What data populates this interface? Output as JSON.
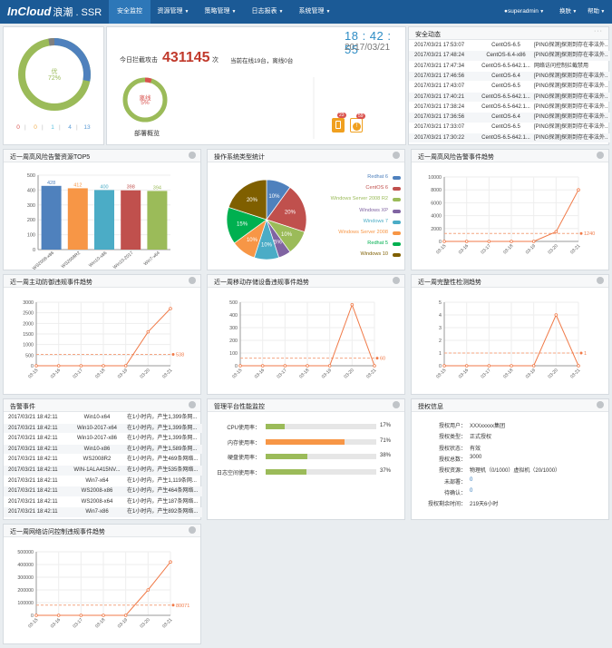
{
  "header": {
    "logo_main": "InCloud",
    "logo_sub": "浪潮 . SSR",
    "menus": [
      {
        "label": "安全监控",
        "active": true
      },
      {
        "label": "资源管理",
        "active": false
      },
      {
        "label": "策略管理",
        "active": false
      },
      {
        "label": "日志报表",
        "active": false
      },
      {
        "label": "系统管理",
        "active": false
      }
    ],
    "user": "superadmin",
    "skin": "换肤",
    "help": "帮助"
  },
  "overview": {
    "donut_label": "优",
    "donut_pct": "72%",
    "donut_value": 72,
    "counts": [
      "0",
      "0",
      "1",
      "4",
      "13"
    ],
    "count_colors": [
      "#d9534f",
      "#f0ad4e",
      "#5bc0de",
      "#5b9bd5",
      "#5b9bd5"
    ],
    "intercept_label": "今日拦截攻击",
    "intercept_value": "431145",
    "intercept_unit": "次",
    "online_text": "当前在线19台，离线0台",
    "offline_label": "离线",
    "offline_pct": "5%",
    "offline_value": 5,
    "deploy_label": "部署概览",
    "time": "18 : 42 : 55",
    "date": "2017/03/21",
    "alert_icon_badge1": "23",
    "alert_icon_badge2": "59"
  },
  "security": {
    "title": "安全动态",
    "more": "···",
    "rows": [
      [
        "2017/03/21 17:53:07",
        "CentOS-6.5",
        "[PING探测]探测到存在非法外..."
      ],
      [
        "2017/03/21 17:48:24",
        "CentOS-6.4-x86",
        "[PING探测]探测到存在非法外..."
      ],
      [
        "2017/03/21 17:47:34",
        "CentOS-6.5-642.1...",
        "网络访问控制拦截禁用"
      ],
      [
        "2017/03/21 17:46:56",
        "CentOS-6.4",
        "[PING探测]探测到存在非法外..."
      ],
      [
        "2017/03/21 17:43:07",
        "CentOS-6.5",
        "[PING探测]探测到存在非法外..."
      ],
      [
        "2017/03/21 17:40:21",
        "CentOS-6.5-642.1...",
        "[PING探测]探测到存在非法外..."
      ],
      [
        "2017/03/21 17:38:24",
        "CentOS-6.5-642.1...",
        "[PING探测]探测到存在非法外..."
      ],
      [
        "2017/03/21 17:36:56",
        "CentOS-6.4",
        "[PING探测]探测到存在非法外..."
      ],
      [
        "2017/03/21 17:33:07",
        "CentOS-6.5",
        "[PING探测]探测到存在非法外..."
      ],
      [
        "2017/03/21 17:30:22",
        "CentOS-6.5-642.1...",
        "[PING探测]探测到存在非法外..."
      ]
    ]
  },
  "panel_titles": {
    "top5": "近一周高风险告警资源TOP5",
    "os": "操作系统类型统计",
    "risk_trend": "近一周高风险告警事件趋势",
    "defense_trend": "近一周主动防御违规事件趋势",
    "storage_trend": "近一周移动存储设备违规事件趋势",
    "integrity_trend": "近一周完整性检测趋势",
    "alarms": "告警事件",
    "platform": "管理平台性能监控",
    "license": "授权信息",
    "network_trend": "近一周网络访问控制违规事件趋势"
  },
  "chart_data": [
    {
      "type": "bar",
      "title": "近一周高风险告警资源TOP5",
      "categories": [
        "WS2008-x86",
        "WS2008R2",
        "Win10-x86",
        "Win10-2017",
        "Win7-x64"
      ],
      "values": [
        428,
        412,
        400,
        398,
        394
      ],
      "colors": [
        "#4f81bd",
        "#f79646",
        "#4bacc6",
        "#c0504d",
        "#9bbb59"
      ],
      "ylim": [
        0,
        500
      ],
      "yticks": [
        0,
        100,
        200,
        300,
        400,
        500
      ]
    },
    {
      "type": "pie",
      "title": "操作系统类型统计",
      "slices": [
        {
          "name": "Redhat 6",
          "value": 10,
          "color": "#4f81bd"
        },
        {
          "name": "CentOS 6",
          "value": 20,
          "color": "#c0504d"
        },
        {
          "name": "Windows Server 2008 R2",
          "value": 10,
          "color": "#9bbb59"
        },
        {
          "name": "Windows XP",
          "value": 5,
          "color": "#8064a2"
        },
        {
          "name": "Windows 7",
          "value": 10,
          "color": "#4bacc6"
        },
        {
          "name": "Windows Server 2008",
          "value": 10,
          "color": "#f79646"
        },
        {
          "name": "Redhat 5",
          "value": 15,
          "color": "#00b050"
        },
        {
          "name": "Windows 10",
          "value": 20,
          "color": "#7f5f00"
        }
      ]
    },
    {
      "type": "line",
      "title": "近一周高风险告警事件趋势",
      "x": [
        "03-15",
        "03-16",
        "03-17",
        "03-18",
        "03-19",
        "03-20",
        "03-21"
      ],
      "values": [
        0,
        0,
        0,
        0,
        0,
        1500,
        8000
      ],
      "avg": 1240,
      "ylim": [
        0,
        10000
      ],
      "yticks": [
        0,
        2000,
        4000,
        6000,
        8000,
        10000
      ]
    },
    {
      "type": "line",
      "title": "近一周主动防御违规事件趋势",
      "x": [
        "03-15",
        "03-16",
        "03-17",
        "03-18",
        "03-19",
        "03-20",
        "03-21"
      ],
      "values": [
        0,
        0,
        0,
        0,
        0,
        1600,
        2700
      ],
      "avg": 538,
      "ylim": [
        0,
        3000
      ],
      "yticks": [
        0,
        500,
        1000,
        1500,
        2000,
        2500,
        3000
      ]
    },
    {
      "type": "line",
      "title": "近一周移动存储设备违规事件趋势",
      "x": [
        "03-15",
        "03-16",
        "03-17",
        "03-18",
        "03-19",
        "03-20",
        "03-21"
      ],
      "values": [
        0,
        0,
        0,
        0,
        0,
        480,
        0
      ],
      "avg": 60,
      "ylim": [
        0,
        500
      ],
      "yticks": [
        0,
        100,
        200,
        300,
        400,
        500
      ]
    },
    {
      "type": "line",
      "title": "近一周完整性检测趋势",
      "x": [
        "03-15",
        "03-16",
        "03-17",
        "03-18",
        "03-19",
        "03-20",
        "03-21"
      ],
      "values": [
        0,
        0,
        0,
        0,
        0,
        4,
        0
      ],
      "avg": 1,
      "ylim": [
        0,
        5
      ],
      "yticks": [
        0,
        1,
        2,
        3,
        4,
        5
      ]
    },
    {
      "type": "line",
      "title": "近一周网络访问控制违规事件趋势",
      "x": [
        "03-15",
        "03-16",
        "03-17",
        "03-18",
        "03-19",
        "03-20",
        "03-21"
      ],
      "values": [
        0,
        0,
        0,
        0,
        0,
        200000,
        420000
      ],
      "avg": 80071,
      "ylim": [
        0,
        500000
      ],
      "yticks": [
        0,
        100000,
        200000,
        300000,
        400000,
        500000
      ]
    }
  ],
  "alarms": [
    [
      "2017/03/21 18:42:11",
      "Win10-x64",
      "在1小时内，产生1,399条网..."
    ],
    [
      "2017/03/21 18:42:11",
      "Win10-2017-x64",
      "在1小时内，产生1,399条网..."
    ],
    [
      "2017/03/21 18:42:11",
      "Win10-2017-x86",
      "在1小时内，产生1,399条网..."
    ],
    [
      "2017/03/21 18:42:11",
      "Win10-x86",
      "在1小时内，产生1,589条网..."
    ],
    [
      "2017/03/21 18:42:11",
      "WS2008R2",
      "在1小时内，产生469条网络..."
    ],
    [
      "2017/03/21 18:42:11",
      "WIN-1ALA415NV...",
      "在1小时内，产生535条网络..."
    ],
    [
      "2017/03/21 18:42:11",
      "Win7-x64",
      "在1小时内，产生1,119条网..."
    ],
    [
      "2017/03/21 18:42:11",
      "WS2008-x86",
      "在1小时内，产生464条网络..."
    ],
    [
      "2017/03/21 18:42:11",
      "WS2008-x64",
      "在1小时内，产生187条网络..."
    ],
    [
      "2017/03/21 18:42:11",
      "Win7-x86",
      "在1小时内，产生892条网络..."
    ]
  ],
  "platform": [
    {
      "label": "CPU使用率：",
      "value": 17,
      "text": "17%",
      "color": "#9bbb59"
    },
    {
      "label": "内存使用率：",
      "value": 71,
      "text": "71%",
      "color": "#f79646"
    },
    {
      "label": "硬盘使用率：",
      "value": 38,
      "text": "38%",
      "color": "#9bbb59"
    },
    {
      "label": "日志空间使用率：",
      "value": 37,
      "text": "37%",
      "color": "#9bbb59"
    }
  ],
  "license": [
    {
      "k": "授权用户：",
      "v": "XXXxxxxx集团",
      "blue": false
    },
    {
      "k": "授权类型：",
      "v": "正式授权",
      "blue": false
    },
    {
      "k": "授权状态：",
      "v": "有效",
      "blue": false
    },
    {
      "k": "授权总数：",
      "v": "3000",
      "blue": false
    },
    {
      "k": "授权资源：",
      "v": "物理机（0/1000）虚拟机（20/1000）",
      "blue": false
    },
    {
      "k": "未部署：",
      "v": "0",
      "blue": true
    },
    {
      "k": "待确认：",
      "v": "0",
      "blue": true
    },
    {
      "k": "授权剩余时间：",
      "v": "219天6小时",
      "blue": false
    }
  ]
}
